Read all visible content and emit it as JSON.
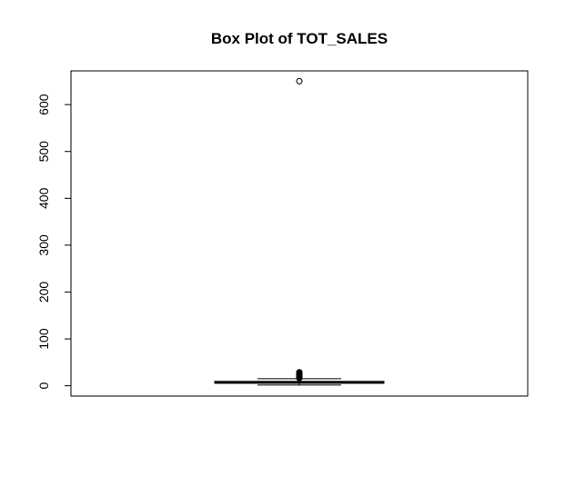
{
  "chart_data": {
    "type": "boxplot",
    "title": "Box Plot of TOT_SALES",
    "xlabel": "",
    "ylabel": "",
    "ylim": [
      -22,
      672
    ],
    "yticks": [
      0,
      100,
      200,
      300,
      400,
      500,
      600
    ],
    "grid": false,
    "box": {
      "whisker_low": 1.5,
      "q1": 5.4,
      "median": 7.4,
      "q3": 9.2,
      "whisker_high": 15.0
    },
    "outliers": [
      650,
      29,
      28,
      27,
      26,
      25,
      24,
      23,
      22,
      21,
      20,
      19,
      18,
      17,
      16.5
    ]
  }
}
